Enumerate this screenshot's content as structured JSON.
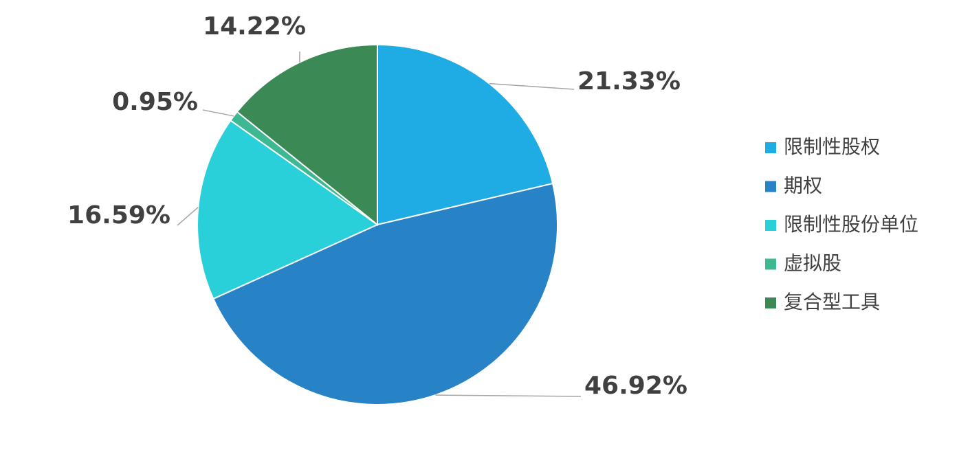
{
  "chart_data": {
    "type": "pie",
    "categories": [
      "限制性股权",
      "期权",
      "限制性股份单位",
      "虚拟股",
      "复合型工具"
    ],
    "values": [
      21.33,
      46.92,
      16.59,
      0.95,
      14.22
    ],
    "value_labels": [
      "21.33%",
      "46.92%",
      "16.59%",
      "0.95%",
      "14.22%"
    ],
    "colors": [
      "#1fabe3",
      "#2782c6",
      "#29cfd9",
      "#3db892",
      "#3b8a55"
    ],
    "legend": "right"
  }
}
